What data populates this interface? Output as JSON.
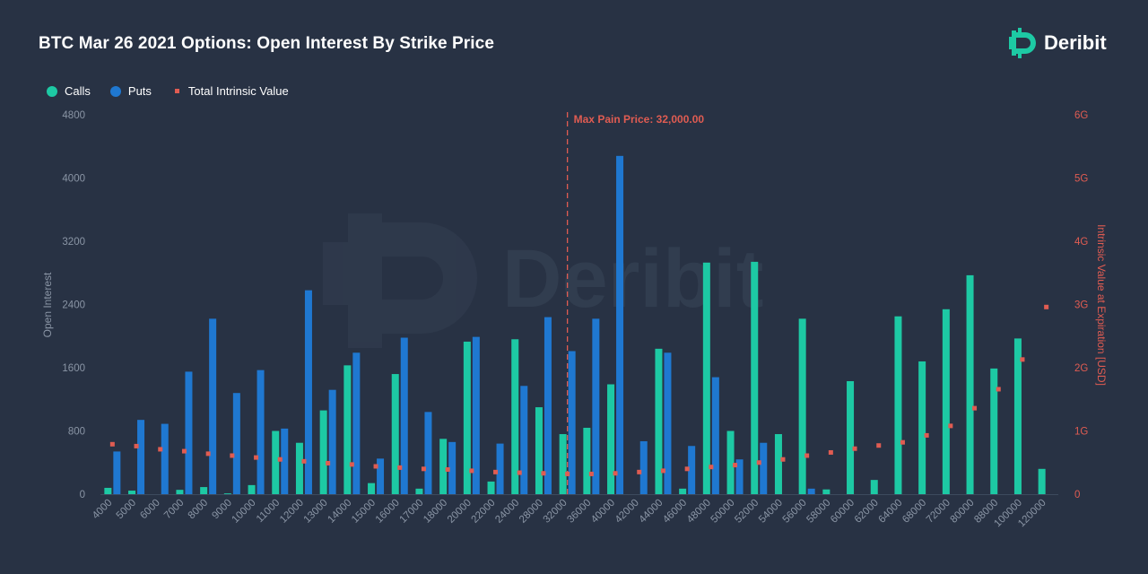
{
  "title": "BTC Mar 26 2021 Options: Open Interest By Strike Price",
  "brand": {
    "name": "Deribit",
    "watermark": "Deribit",
    "icon": "deribit-logo-icon"
  },
  "colors": {
    "background": "#283244",
    "calls": "#1dc9a4",
    "puts": "#1f78d1",
    "intrinsic": "#e05c52",
    "maxpain": "#e05c52",
    "axis_text": "#8a95a5"
  },
  "legend": {
    "calls": "Calls",
    "puts": "Puts",
    "intrinsic": "Total Intrinsic Value"
  },
  "chart_data": {
    "type": "bar",
    "title": "BTC Mar 26 2021 Options: Open Interest By Strike Price",
    "ylabel": "Open Interest",
    "y2label": "Intrinsic Value at Expiration [USD]",
    "ylim": [
      0,
      4800
    ],
    "y2lim": [
      0,
      6
    ],
    "yticks": [
      "0",
      "800",
      "1600",
      "2400",
      "3200",
      "4000",
      "4800"
    ],
    "y2ticks": [
      "0",
      "1G",
      "2G",
      "3G",
      "4G",
      "5G",
      "6G"
    ],
    "categories": [
      "4000",
      "5000",
      "6000",
      "7000",
      "8000",
      "9000",
      "10000",
      "11000",
      "12000",
      "13000",
      "14000",
      "15000",
      "16000",
      "17000",
      "18000",
      "20000",
      "22000",
      "24000",
      "28000",
      "32000",
      "36000",
      "40000",
      "42000",
      "44000",
      "46000",
      "48000",
      "50000",
      "52000",
      "54000",
      "56000",
      "58000",
      "60000",
      "62000",
      "64000",
      "68000",
      "72000",
      "80000",
      "88000",
      "100000",
      "120000"
    ],
    "series": [
      {
        "name": "Calls",
        "type": "bar",
        "values": [
          80,
          45,
          0,
          55,
          90,
          10,
          115,
          800,
          650,
          1060,
          1630,
          140,
          1520,
          70,
          700,
          1930,
          160,
          1960,
          1100,
          760,
          840,
          1390,
          0,
          1840,
          70,
          2930,
          800,
          2940,
          760,
          2220,
          60,
          1430,
          180,
          2250,
          1680,
          2340,
          2770,
          1590,
          1970,
          320
        ]
      },
      {
        "name": "Puts",
        "type": "bar",
        "values": [
          540,
          940,
          890,
          1550,
          2220,
          1280,
          1570,
          830,
          2580,
          1320,
          1790,
          450,
          1980,
          1040,
          660,
          1990,
          640,
          1370,
          2240,
          1810,
          2220,
          4280,
          670,
          1790,
          610,
          1480,
          440,
          650,
          0,
          70,
          0,
          0,
          0,
          0,
          0,
          0,
          0,
          0,
          0,
          0
        ]
      },
      {
        "name": "Total Intrinsic Value",
        "type": "scatter",
        "unit": "G USD",
        "values": [
          0.79,
          0.76,
          0.71,
          0.68,
          0.64,
          0.61,
          0.58,
          0.55,
          0.52,
          0.49,
          0.47,
          0.44,
          0.42,
          0.4,
          0.39,
          0.37,
          0.35,
          0.34,
          0.33,
          0.32,
          0.32,
          0.33,
          0.35,
          0.37,
          0.4,
          0.43,
          0.46,
          0.5,
          0.55,
          0.61,
          0.66,
          0.72,
          0.77,
          0.82,
          0.93,
          1.08,
          1.36,
          1.66,
          2.13,
          2.96
        ]
      }
    ],
    "max_pain": {
      "label": "Max Pain Price: 32,000.00",
      "strike": "32000"
    },
    "grid": false,
    "legend_position": "top-left"
  }
}
